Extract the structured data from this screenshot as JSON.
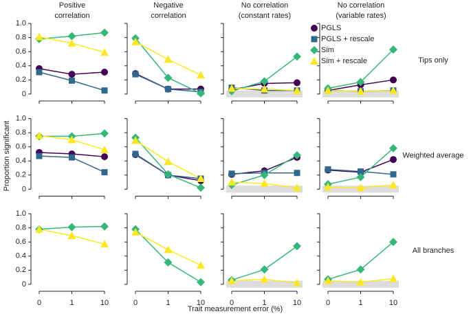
{
  "xlabel": "Trait measurement error (%)",
  "ylabel": "Proportion significant",
  "chart_data": [
    {
      "type": "line",
      "title": [
        "Positive",
        "correlation"
      ],
      "categories": [
        "0",
        "1",
        "10"
      ],
      "ylim": [
        -0.05,
        1.05
      ],
      "yticks": [
        0,
        0.2,
        0.4,
        0.6,
        0.8,
        {
          "value": 1,
          "label": "1.0"
        }
      ],
      "series": [
        {
          "name": "PGLS",
          "color": "#440154",
          "marker": "circle",
          "values": [
            0.36,
            0.28,
            0.31
          ]
        },
        {
          "name": "PGLS + rescale",
          "color": "#31688e",
          "marker": "square",
          "values": [
            0.31,
            0.19,
            0.05
          ]
        },
        {
          "name": "Sim",
          "color": "#35b779",
          "marker": "diamond",
          "values": [
            0.78,
            0.82,
            0.87
          ]
        },
        {
          "name": "Sim + rescale",
          "color": "#fde725",
          "marker": "triangle",
          "values": [
            0.81,
            0.72,
            0.59
          ]
        }
      ]
    },
    {
      "type": "line",
      "title": [
        "Negative",
        "correlation"
      ],
      "categories": [
        "0",
        "1",
        "10"
      ],
      "ylim": [
        -0.05,
        1.05
      ],
      "series": [
        {
          "name": "PGLS",
          "color": "#440154",
          "marker": "circle",
          "values": [
            0.29,
            0.07,
            0.07
          ]
        },
        {
          "name": "PGLS + rescale",
          "color": "#31688e",
          "marker": "square",
          "values": [
            0.28,
            0.07,
            0.03
          ]
        },
        {
          "name": "Sim",
          "color": "#35b779",
          "marker": "diamond",
          "values": [
            0.79,
            0.23,
            0.01
          ]
        },
        {
          "name": "Sim + rescale",
          "color": "#fde725",
          "marker": "triangle",
          "values": [
            0.74,
            0.49,
            0.27
          ]
        }
      ]
    },
    {
      "type": "line",
      "title": [
        "No correlation",
        "(constant rates)"
      ],
      "categories": [
        "0",
        "1",
        "10"
      ],
      "ylim": [
        -0.05,
        1.05
      ],
      "legend": true,
      "band": {
        "range": [
          0,
          0.05
        ],
        "color": "#dddddd"
      },
      "series": [
        {
          "name": "PGLS",
          "color": "#440154",
          "marker": "circle",
          "values": [
            0.06,
            0.15,
            0.16
          ]
        },
        {
          "name": "PGLS + rescale",
          "color": "#31688e",
          "marker": "square",
          "values": [
            0.09,
            0.05,
            0.05
          ]
        },
        {
          "name": "Sim",
          "color": "#35b779",
          "marker": "diamond",
          "values": [
            0.04,
            0.18,
            0.53
          ]
        },
        {
          "name": "Sim + rescale",
          "color": "#fde725",
          "marker": "triangle",
          "values": [
            0.08,
            0.07,
            0.05
          ]
        }
      ]
    },
    {
      "type": "line",
      "title": [
        "No correlation",
        "(variable rates)"
      ],
      "row_label": "Tips only",
      "categories": [
        "0",
        "1",
        "10"
      ],
      "ylim": [
        -0.05,
        1.05
      ],
      "band": {
        "range": [
          0,
          0.05
        ],
        "color": "#dddddd"
      },
      "series": [
        {
          "name": "PGLS",
          "color": "#440154",
          "marker": "circle",
          "values": [
            0.05,
            0.13,
            0.2
          ]
        },
        {
          "name": "PGLS + rescale",
          "color": "#31688e",
          "marker": "square",
          "values": [
            0.05,
            0.04,
            0.05
          ]
        },
        {
          "name": "Sim",
          "color": "#35b779",
          "marker": "diamond",
          "values": [
            0.08,
            0.17,
            0.63
          ]
        },
        {
          "name": "Sim + rescale",
          "color": "#fde725",
          "marker": "triangle",
          "values": [
            0.05,
            0.04,
            0.05
          ]
        }
      ]
    },
    {
      "type": "line",
      "categories": [
        "0",
        "1",
        "10"
      ],
      "ylim": [
        -0.05,
        1.05
      ],
      "yticks": [
        0,
        0.2,
        0.4,
        0.6,
        0.8,
        {
          "value": 1,
          "label": "1.0"
        }
      ],
      "series": [
        {
          "name": "PGLS",
          "color": "#440154",
          "marker": "circle",
          "values": [
            0.52,
            0.5,
            0.46
          ]
        },
        {
          "name": "PGLS + rescale",
          "color": "#31688e",
          "marker": "square",
          "values": [
            0.47,
            0.45,
            0.24
          ]
        },
        {
          "name": "Sim",
          "color": "#35b779",
          "marker": "diamond",
          "values": [
            0.75,
            0.75,
            0.79
          ]
        },
        {
          "name": "Sim + rescale",
          "color": "#fde725",
          "marker": "triangle",
          "values": [
            0.76,
            0.7,
            0.56
          ]
        }
      ]
    },
    {
      "type": "line",
      "categories": [
        "0",
        "1",
        "10"
      ],
      "ylim": [
        -0.05,
        1.05
      ],
      "series": [
        {
          "name": "PGLS",
          "color": "#440154",
          "marker": "circle",
          "values": [
            0.49,
            0.2,
            0.12
          ]
        },
        {
          "name": "PGLS + rescale",
          "color": "#31688e",
          "marker": "square",
          "values": [
            0.5,
            0.2,
            0.15
          ]
        },
        {
          "name": "Sim",
          "color": "#35b779",
          "marker": "diamond",
          "values": [
            0.73,
            0.21,
            0.02
          ]
        },
        {
          "name": "Sim + rescale",
          "color": "#fde725",
          "marker": "triangle",
          "values": [
            0.69,
            0.39,
            0.15
          ]
        }
      ]
    },
    {
      "type": "line",
      "categories": [
        "0",
        "1",
        "10"
      ],
      "ylim": [
        -0.05,
        1.05
      ],
      "band": {
        "range": [
          0,
          0.05
        ],
        "color": "#dddddd"
      },
      "series": [
        {
          "name": "PGLS",
          "color": "#440154",
          "marker": "circle",
          "values": [
            0.21,
            0.26,
            0.45
          ]
        },
        {
          "name": "PGLS + rescale",
          "color": "#31688e",
          "marker": "square",
          "values": [
            0.22,
            0.23,
            0.23
          ]
        },
        {
          "name": "Sim",
          "color": "#35b779",
          "marker": "diamond",
          "values": [
            0.06,
            0.2,
            0.48
          ]
        },
        {
          "name": "Sim + rescale",
          "color": "#fde725",
          "marker": "triangle",
          "values": [
            0.1,
            0.08,
            0.02
          ]
        }
      ]
    },
    {
      "type": "line",
      "row_label": "Weighted average",
      "categories": [
        "0",
        "1",
        "10"
      ],
      "ylim": [
        -0.05,
        1.05
      ],
      "band": {
        "range": [
          0,
          0.05
        ],
        "color": "#dddddd"
      },
      "series": [
        {
          "name": "PGLS",
          "color": "#440154",
          "marker": "circle",
          "values": [
            0.27,
            0.24,
            0.42
          ]
        },
        {
          "name": "PGLS + rescale",
          "color": "#31688e",
          "marker": "square",
          "values": [
            0.28,
            0.25,
            0.21
          ]
        },
        {
          "name": "Sim",
          "color": "#35b779",
          "marker": "diamond",
          "values": [
            0.07,
            0.17,
            0.58
          ]
        },
        {
          "name": "Sim + rescale",
          "color": "#fde725",
          "marker": "triangle",
          "values": [
            0.03,
            0.02,
            0.06
          ]
        }
      ]
    },
    {
      "type": "line",
      "categories": [
        "0",
        "1",
        "10"
      ],
      "ylim": [
        -0.05,
        1.05
      ],
      "yticks": [
        0,
        0.2,
        0.4,
        0.6,
        0.8,
        {
          "value": 1,
          "label": "1.0"
        }
      ],
      "series": [
        {
          "name": "Sim",
          "color": "#35b779",
          "marker": "diamond",
          "values": [
            0.78,
            0.81,
            0.82
          ]
        },
        {
          "name": "Sim + rescale",
          "color": "#fde725",
          "marker": "triangle",
          "values": [
            0.78,
            0.69,
            0.57
          ]
        }
      ]
    },
    {
      "type": "line",
      "categories": [
        "0",
        "1",
        "10"
      ],
      "ylim": [
        -0.05,
        1.05
      ],
      "series": [
        {
          "name": "Sim",
          "color": "#35b779",
          "marker": "diamond",
          "values": [
            0.78,
            0.31,
            0.03
          ]
        },
        {
          "name": "Sim + rescale",
          "color": "#fde725",
          "marker": "triangle",
          "values": [
            0.74,
            0.49,
            0.27
          ]
        }
      ]
    },
    {
      "type": "line",
      "categories": [
        "0",
        "1",
        "10"
      ],
      "ylim": [
        -0.05,
        1.05
      ],
      "band": {
        "range": [
          0,
          0.05
        ],
        "color": "#dddddd"
      },
      "series": [
        {
          "name": "Sim",
          "color": "#35b779",
          "marker": "diamond",
          "values": [
            0.06,
            0.21,
            0.54
          ]
        },
        {
          "name": "Sim + rescale",
          "color": "#fde725",
          "marker": "triangle",
          "values": [
            0.05,
            0.07,
            0.02
          ]
        }
      ]
    },
    {
      "type": "line",
      "row_label": "All branches",
      "categories": [
        "0",
        "1",
        "10"
      ],
      "ylim": [
        -0.05,
        1.05
      ],
      "band": {
        "range": [
          0,
          0.05
        ],
        "color": "#dddddd"
      },
      "series": [
        {
          "name": "Sim",
          "color": "#35b779",
          "marker": "diamond",
          "values": [
            0.07,
            0.21,
            0.6
          ]
        },
        {
          "name": "Sim + rescale",
          "color": "#fde725",
          "marker": "triangle",
          "values": [
            0.05,
            0.03,
            0.08
          ]
        }
      ]
    }
  ]
}
